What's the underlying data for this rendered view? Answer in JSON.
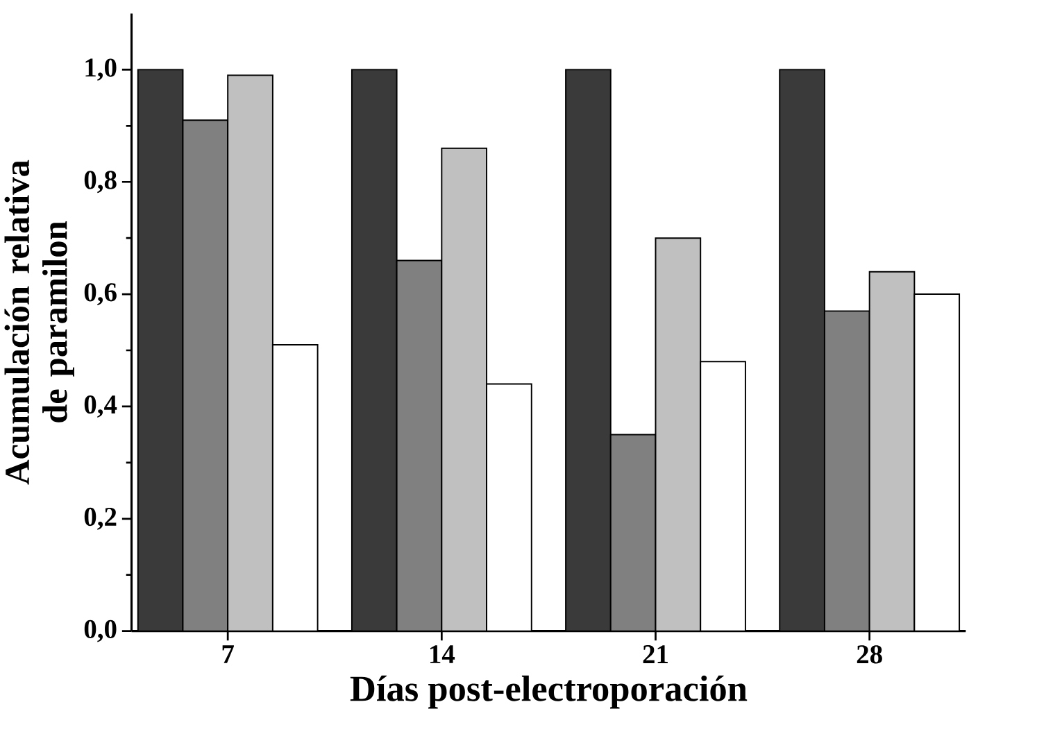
{
  "chart_data": {
    "type": "bar",
    "xlabel": "Días post-electroporación",
    "ylabel": "Acumulación relativa de paramilon",
    "categories": [
      "7",
      "14",
      "21",
      "28"
    ],
    "series": [
      {
        "color": "#3a3a3a",
        "values": [
          1.0,
          1.0,
          1.0,
          1.0
        ]
      },
      {
        "color": "#808080",
        "values": [
          0.91,
          0.66,
          0.35,
          0.57
        ]
      },
      {
        "color": "#c0c0c0",
        "values": [
          0.99,
          0.86,
          0.7,
          0.64
        ]
      },
      {
        "color": "#ffffff",
        "values": [
          0.51,
          0.44,
          0.48,
          0.6
        ]
      }
    ],
    "ylim": [
      0,
      1.1
    ],
    "yticks": [
      {
        "value": 0,
        "label": "0,0"
      },
      {
        "value": 0.2,
        "label": "0,2"
      },
      {
        "value": 0.4,
        "label": "0,4"
      },
      {
        "value": 0.6,
        "label": "0,6"
      },
      {
        "value": 0.8,
        "label": "0,8"
      },
      {
        "value": 1.0,
        "label": "1,0"
      }
    ],
    "grid": false
  }
}
